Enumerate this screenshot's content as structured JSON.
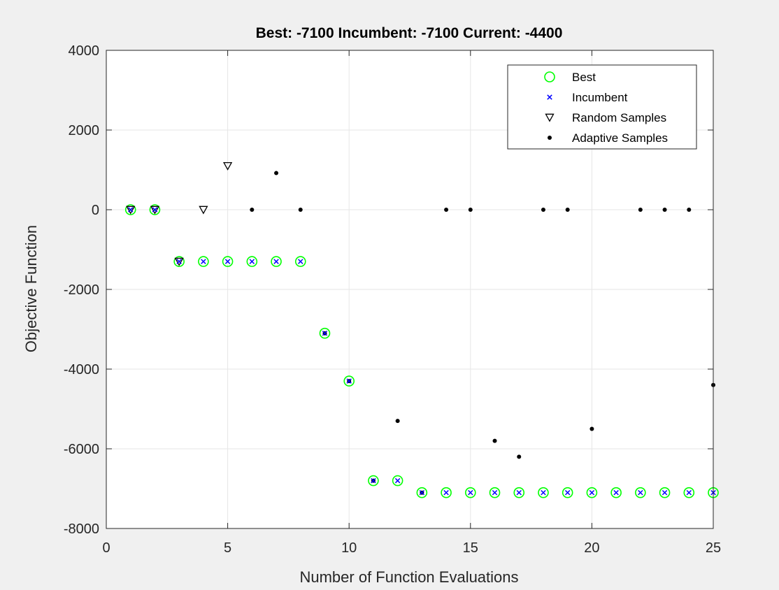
{
  "chart_data": {
    "type": "scatter",
    "title": "Best: -7100 Incumbent: -7100 Current: -4400",
    "xlabel": "Number of Function Evaluations",
    "ylabel": "Objective Function",
    "xlim": [
      0,
      25
    ],
    "ylim": [
      -8000,
      4000
    ],
    "xticks": [
      0,
      5,
      10,
      15,
      20,
      25
    ],
    "yticks": [
      -8000,
      -6000,
      -4000,
      -2000,
      0,
      2000,
      4000
    ],
    "grid": true,
    "legend_position": "top-right",
    "colors": {
      "best": "#00ff00",
      "incumbent": "#0000ff",
      "random": "#000000",
      "adaptive": "#000000",
      "axes_bg": "#ffffff",
      "figure_bg": "#f0f0f0",
      "grid": "#e6e6e6"
    },
    "series": [
      {
        "name": "Best",
        "marker": "circle",
        "x": [
          1,
          2,
          3,
          4,
          5,
          6,
          7,
          8,
          9,
          10,
          11,
          12,
          13,
          14,
          15,
          16,
          17,
          18,
          19,
          20,
          21,
          22,
          23,
          24,
          25
        ],
        "y": [
          0,
          0,
          -1300,
          -1300,
          -1300,
          -1300,
          -1300,
          -1300,
          -3100,
          -4300,
          -6800,
          -6800,
          -7100,
          -7100,
          -7100,
          -7100,
          -7100,
          -7100,
          -7100,
          -7100,
          -7100,
          -7100,
          -7100,
          -7100,
          -7100
        ]
      },
      {
        "name": "Incumbent",
        "marker": "x",
        "x": [
          1,
          2,
          3,
          4,
          5,
          6,
          7,
          8,
          9,
          10,
          11,
          12,
          13,
          14,
          15,
          16,
          17,
          18,
          19,
          20,
          21,
          22,
          23,
          24,
          25
        ],
        "y": [
          0,
          0,
          -1300,
          -1300,
          -1300,
          -1300,
          -1300,
          -1300,
          -3100,
          -4300,
          -6800,
          -6800,
          -7100,
          -7100,
          -7100,
          -7100,
          -7100,
          -7100,
          -7100,
          -7100,
          -7100,
          -7100,
          -7100,
          -7100,
          -7100
        ]
      },
      {
        "name": "Random Samples",
        "marker": "triangle-down",
        "x": [
          1,
          2,
          3,
          4,
          5
        ],
        "y": [
          0,
          0,
          -1300,
          0,
          1100
        ]
      },
      {
        "name": "Adaptive Samples",
        "marker": "dot",
        "x": [
          6,
          7,
          8,
          9,
          10,
          11,
          12,
          13,
          14,
          15,
          16,
          17,
          18,
          19,
          20,
          22,
          23,
          24,
          25
        ],
        "y": [
          0,
          920,
          0,
          -3100,
          -4300,
          -6800,
          -5300,
          -7100,
          0,
          0,
          -5800,
          -6200,
          0,
          0,
          -5500,
          0,
          0,
          0,
          -4400
        ]
      }
    ]
  }
}
